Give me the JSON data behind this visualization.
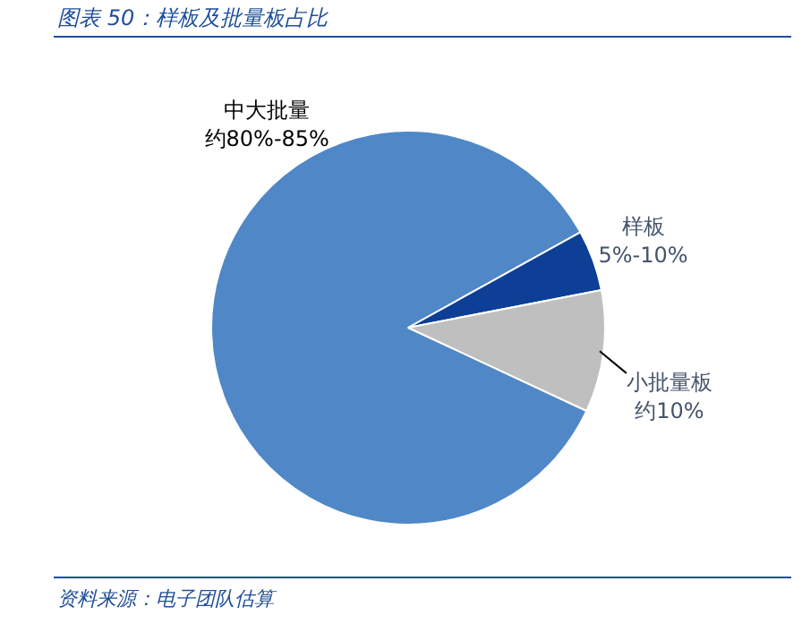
{
  "chart_data": {
    "type": "pie",
    "title": "图表 50：样板及批量板占比",
    "categories": [
      "中大批量约80%-85%",
      "样板5%-10%",
      "小批量板约10%"
    ],
    "values": [
      85,
      5,
      10
    ],
    "colors": [
      "#5087c7",
      "#0d3f97",
      "#bfbfbf"
    ],
    "legend": false,
    "annotations": [
      "资料来源：电子团队估算"
    ]
  }
}
